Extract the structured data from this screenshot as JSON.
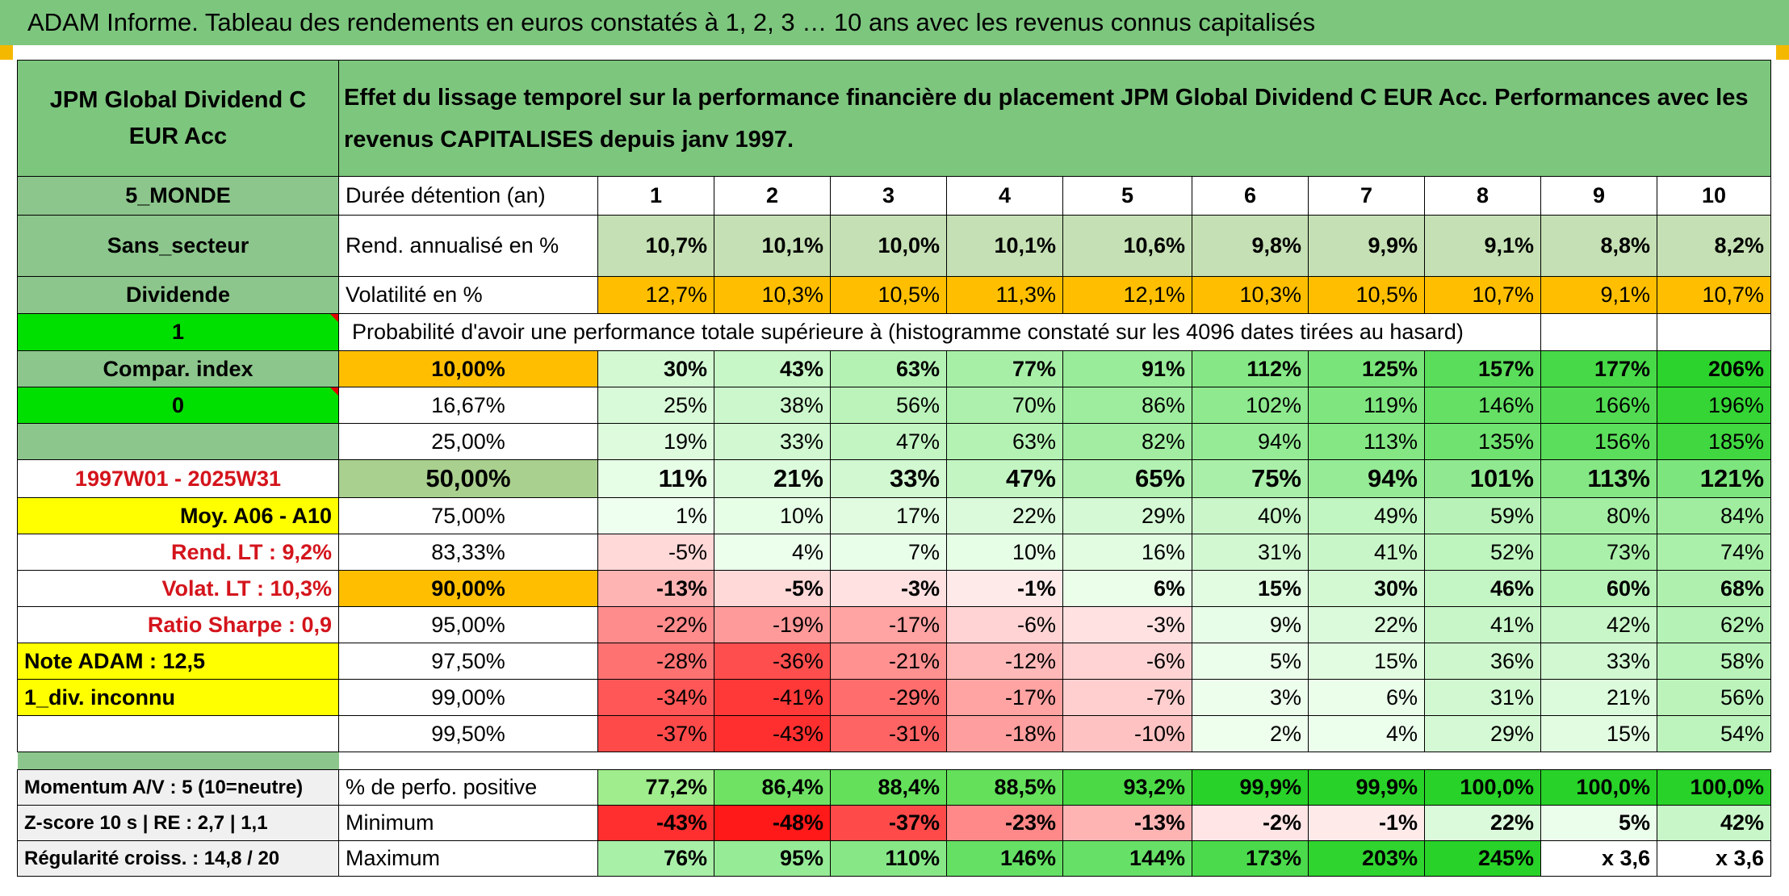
{
  "title": "ADAM Informe. Tableau des rendements en euros constatés à 1, 2, 3 … 10 ans avec les revenus connus capitalisés",
  "fund_name": "JPM Global Dividend C EUR Acc",
  "description": "Effet du lissage temporel sur la performance financière du placement JPM Global Dividend C EUR Acc. Performances avec les revenus CAPITALISES depuis janv 1997.",
  "info": {
    "zone": "5_MONDE",
    "sector": "Sans_secteur",
    "type": "Dividende",
    "one": "1",
    "compar_index": "Compar. index",
    "zero": "0",
    "period": "1997W01 - 2025W31",
    "moy": "Moy. A06 - A10",
    "rend_lt": "Rend. LT :   9,2%",
    "volat_lt": "Volat. LT :   10,3%",
    "sharpe": "Ratio Sharpe :    0,9",
    "note": "Note ADAM : 12,5",
    "div": "1_div. inconnu",
    "momentum": "Momentum A/V : 5 (10=neutre)",
    "zscore": "Z-score 10 s | RE : 2,7 | 1,1",
    "regularite": "Régularité croiss. : 14,8 / 20"
  },
  "labels": {
    "duration": "Durée détention (an)",
    "rend": "Rend. annualisé en %",
    "vol": "Volatilité en %",
    "proba": "Probabilité d'avoir une performance totale supérieure à (histogramme constaté sur les 4096 dates tirées au hasard)",
    "positive": "% de perfo. positive",
    "minimum": "Minimum",
    "maximum": "Maximum"
  },
  "years": [
    "1",
    "2",
    "3",
    "4",
    "5",
    "6",
    "7",
    "8",
    "9",
    "10"
  ],
  "rend": [
    "10,7%",
    "10,1%",
    "10,0%",
    "10,1%",
    "10,6%",
    "9,8%",
    "9,9%",
    "9,1%",
    "8,8%",
    "8,2%"
  ],
  "vol": [
    "12,7%",
    "10,3%",
    "10,5%",
    "11,3%",
    "12,1%",
    "10,3%",
    "10,5%",
    "10,7%",
    "9,1%",
    "10,7%"
  ],
  "proba_rows": [
    {
      "p": "10,00%",
      "v": [
        "30%",
        "43%",
        "63%",
        "77%",
        "91%",
        "112%",
        "125%",
        "157%",
        "177%",
        "206%"
      ]
    },
    {
      "p": "16,67%",
      "v": [
        "25%",
        "38%",
        "56%",
        "70%",
        "86%",
        "102%",
        "119%",
        "146%",
        "166%",
        "196%"
      ]
    },
    {
      "p": "25,00%",
      "v": [
        "19%",
        "33%",
        "47%",
        "63%",
        "82%",
        "94%",
        "113%",
        "135%",
        "156%",
        "185%"
      ]
    },
    {
      "p": "50,00%",
      "v": [
        "11%",
        "21%",
        "33%",
        "47%",
        "65%",
        "75%",
        "94%",
        "101%",
        "113%",
        "121%"
      ]
    },
    {
      "p": "75,00%",
      "v": [
        "1%",
        "10%",
        "17%",
        "22%",
        "29%",
        "40%",
        "49%",
        "59%",
        "80%",
        "84%"
      ]
    },
    {
      "p": "83,33%",
      "v": [
        "-5%",
        "4%",
        "7%",
        "10%",
        "16%",
        "31%",
        "41%",
        "52%",
        "73%",
        "74%"
      ]
    },
    {
      "p": "90,00%",
      "v": [
        "-13%",
        "-5%",
        "-3%",
        "-1%",
        "6%",
        "15%",
        "30%",
        "46%",
        "60%",
        "68%"
      ]
    },
    {
      "p": "95,00%",
      "v": [
        "-22%",
        "-19%",
        "-17%",
        "-6%",
        "-3%",
        "9%",
        "22%",
        "41%",
        "42%",
        "62%"
      ]
    },
    {
      "p": "97,50%",
      "v": [
        "-28%",
        "-36%",
        "-21%",
        "-12%",
        "-6%",
        "5%",
        "15%",
        "36%",
        "33%",
        "58%"
      ]
    },
    {
      "p": "99,00%",
      "v": [
        "-34%",
        "-41%",
        "-29%",
        "-17%",
        "-7%",
        "3%",
        "6%",
        "31%",
        "21%",
        "56%"
      ]
    },
    {
      "p": "99,50%",
      "v": [
        "-37%",
        "-43%",
        "-31%",
        "-18%",
        "-10%",
        "2%",
        "4%",
        "29%",
        "15%",
        "54%"
      ]
    }
  ],
  "positive": [
    "77,2%",
    "86,4%",
    "88,4%",
    "88,5%",
    "93,2%",
    "99,9%",
    "99,9%",
    "100,0%",
    "100,0%",
    "100,0%"
  ],
  "minimum": [
    "-43%",
    "-48%",
    "-37%",
    "-23%",
    "-13%",
    "-2%",
    "-1%",
    "22%",
    "5%",
    "42%"
  ],
  "maximum": [
    "76%",
    "95%",
    "110%",
    "146%",
    "144%",
    "173%",
    "203%",
    "245%",
    "x 3,6",
    "x 3,6"
  ],
  "colors": {
    "header_green": "#7dc67e",
    "label_green": "#8cc68c",
    "bright_green": "#00e000",
    "yellow": "#ffff00",
    "orange": "#ffbf00",
    "rend_green": "#c5e0b4",
    "median_green": "#a9d08e",
    "text_red": "#d4141c"
  }
}
